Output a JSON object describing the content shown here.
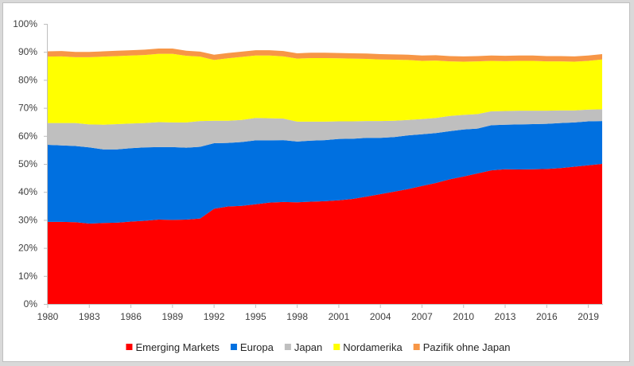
{
  "chart_data": {
    "type": "area",
    "stacked": true,
    "title": "",
    "xlabel": "",
    "ylabel": "",
    "x": [
      1980,
      1981,
      1982,
      1983,
      1984,
      1985,
      1986,
      1987,
      1988,
      1989,
      1990,
      1991,
      1992,
      1993,
      1994,
      1995,
      1996,
      1997,
      1998,
      1999,
      2000,
      2001,
      2002,
      2003,
      2004,
      2005,
      2006,
      2007,
      2008,
      2009,
      2010,
      2011,
      2012,
      2013,
      2014,
      2015,
      2016,
      2017,
      2018,
      2019,
      2020
    ],
    "xlim": [
      1980,
      2020
    ],
    "ylim": [
      0,
      1
    ],
    "y_format": "percent",
    "x_ticks": [
      1980,
      1983,
      1986,
      1989,
      1992,
      1995,
      1998,
      2001,
      2004,
      2007,
      2010,
      2013,
      2016,
      2019
    ],
    "y_ticks": [
      0,
      0.1,
      0.2,
      0.3,
      0.4,
      0.5,
      0.6,
      0.7,
      0.8,
      0.9,
      1.0
    ],
    "x_tick_labels": [
      "1980",
      "1983",
      "1986",
      "1989",
      "1992",
      "1995",
      "1998",
      "2001",
      "2004",
      "2007",
      "2010",
      "2013",
      "2016",
      "2019"
    ],
    "y_tick_labels": [
      "0%",
      "10%",
      "20%",
      "30%",
      "40%",
      "50%",
      "60%",
      "70%",
      "80%",
      "90%",
      "100%"
    ],
    "grid": false,
    "legend_position": "bottom",
    "series": [
      {
        "name": "Emerging Markets",
        "color": "#ff0000",
        "values": [
          0.293,
          0.293,
          0.292,
          0.287,
          0.289,
          0.29,
          0.294,
          0.297,
          0.301,
          0.3,
          0.301,
          0.305,
          0.34,
          0.348,
          0.35,
          0.356,
          0.362,
          0.364,
          0.363,
          0.365,
          0.367,
          0.37,
          0.375,
          0.383,
          0.392,
          0.401,
          0.41,
          0.421,
          0.432,
          0.445,
          0.455,
          0.466,
          0.477,
          0.481,
          0.48,
          0.481,
          0.482,
          0.485,
          0.49,
          0.495,
          0.5
        ]
      },
      {
        "name": "Europa",
        "color": "#0070e0",
        "values": [
          0.275,
          0.273,
          0.272,
          0.272,
          0.263,
          0.262,
          0.262,
          0.262,
          0.259,
          0.26,
          0.257,
          0.256,
          0.234,
          0.227,
          0.228,
          0.228,
          0.222,
          0.221,
          0.217,
          0.218,
          0.218,
          0.219,
          0.215,
          0.21,
          0.201,
          0.195,
          0.192,
          0.185,
          0.178,
          0.172,
          0.168,
          0.16,
          0.161,
          0.159,
          0.161,
          0.161,
          0.161,
          0.161,
          0.158,
          0.157,
          0.153
        ]
      },
      {
        "name": "Japan",
        "color": "#bfbfbf",
        "values": [
          0.078,
          0.08,
          0.082,
          0.082,
          0.088,
          0.09,
          0.088,
          0.087,
          0.089,
          0.088,
          0.09,
          0.092,
          0.08,
          0.079,
          0.079,
          0.08,
          0.079,
          0.077,
          0.071,
          0.068,
          0.066,
          0.063,
          0.062,
          0.06,
          0.06,
          0.058,
          0.055,
          0.054,
          0.054,
          0.054,
          0.052,
          0.052,
          0.05,
          0.049,
          0.049,
          0.048,
          0.047,
          0.045,
          0.043,
          0.042,
          0.042
        ]
      },
      {
        "name": "Nordamerika",
        "color": "#ffff00",
        "values": [
          0.237,
          0.238,
          0.235,
          0.24,
          0.243,
          0.243,
          0.243,
          0.243,
          0.244,
          0.245,
          0.238,
          0.23,
          0.217,
          0.223,
          0.225,
          0.223,
          0.224,
          0.222,
          0.225,
          0.227,
          0.227,
          0.225,
          0.224,
          0.222,
          0.22,
          0.218,
          0.214,
          0.208,
          0.205,
          0.195,
          0.19,
          0.188,
          0.18,
          0.178,
          0.178,
          0.178,
          0.176,
          0.175,
          0.174,
          0.174,
          0.178
        ]
      },
      {
        "name": "Pazifik ohne Japan",
        "color": "#f79646",
        "values": [
          0.019,
          0.019,
          0.019,
          0.019,
          0.019,
          0.019,
          0.019,
          0.019,
          0.019,
          0.019,
          0.018,
          0.018,
          0.019,
          0.019,
          0.019,
          0.019,
          0.019,
          0.019,
          0.019,
          0.019,
          0.019,
          0.019,
          0.019,
          0.019,
          0.019,
          0.019,
          0.019,
          0.019,
          0.019,
          0.019,
          0.019,
          0.019,
          0.019,
          0.019,
          0.019,
          0.019,
          0.019,
          0.019,
          0.019,
          0.019,
          0.019
        ]
      }
    ]
  }
}
